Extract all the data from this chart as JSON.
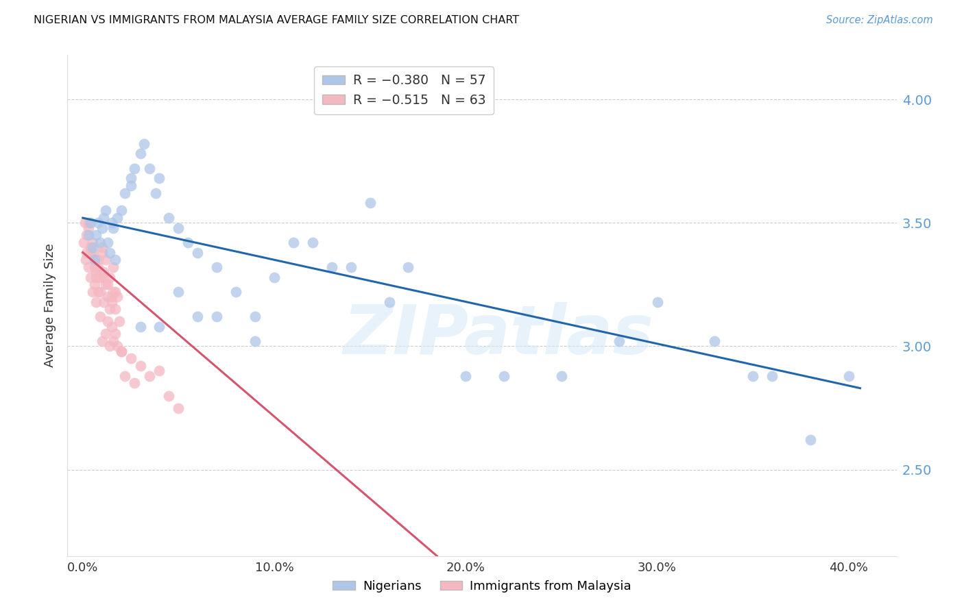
{
  "title": "NIGERIAN VS IMMIGRANTS FROM MALAYSIA AVERAGE FAMILY SIZE CORRELATION CHART",
  "source": "Source: ZipAtlas.com",
  "ylabel": "Average Family Size",
  "xlabel_ticks": [
    "0.0%",
    "10.0%",
    "20.0%",
    "30.0%",
    "40.0%"
  ],
  "xlabel_tick_vals": [
    0.0,
    0.1,
    0.2,
    0.3,
    0.4
  ],
  "ylabel_ticks": [
    2.5,
    3.0,
    3.5,
    4.0
  ],
  "xlim": [
    -0.008,
    0.425
  ],
  "ylim": [
    2.15,
    4.18
  ],
  "legend1_color": "#aec6e8",
  "legend2_color": "#f4b8c1",
  "nigerian_color": "#aec6e8",
  "malaysia_color": "#f4b8c1",
  "nigerian_line_color": "#2166ac",
  "malaysia_line_color": "#d6546e",
  "watermark": "ZIPatlas",
  "nigerian_R": -0.38,
  "nigerian_N": 57,
  "malaysia_R": -0.515,
  "malaysia_N": 63,
  "blue_line_x0": 0.0,
  "blue_line_y0": 3.52,
  "blue_line_x1": 0.406,
  "blue_line_y1": 2.83,
  "pink_line_x0": 0.0,
  "pink_line_y0": 3.38,
  "pink_line_x1": 0.185,
  "pink_line_y1": 2.15,
  "nigerian_x": [
    0.003,
    0.004,
    0.005,
    0.006,
    0.007,
    0.008,
    0.009,
    0.01,
    0.011,
    0.012,
    0.013,
    0.014,
    0.015,
    0.016,
    0.017,
    0.018,
    0.02,
    0.022,
    0.025,
    0.027,
    0.03,
    0.032,
    0.035,
    0.038,
    0.04,
    0.045,
    0.05,
    0.055,
    0.06,
    0.07,
    0.08,
    0.09,
    0.1,
    0.12,
    0.14,
    0.16,
    0.2,
    0.22,
    0.25,
    0.28,
    0.3,
    0.33,
    0.36,
    0.38,
    0.4,
    0.03,
    0.05,
    0.07,
    0.09,
    0.11,
    0.13,
    0.15,
    0.17,
    0.025,
    0.04,
    0.06,
    0.35
  ],
  "nigerian_y": [
    3.45,
    3.5,
    3.4,
    3.35,
    3.45,
    3.5,
    3.42,
    3.48,
    3.52,
    3.55,
    3.42,
    3.38,
    3.5,
    3.48,
    3.35,
    3.52,
    3.55,
    3.62,
    3.68,
    3.72,
    3.78,
    3.82,
    3.72,
    3.62,
    3.68,
    3.52,
    3.48,
    3.42,
    3.38,
    3.32,
    3.22,
    3.12,
    3.28,
    3.42,
    3.32,
    3.18,
    2.88,
    2.88,
    2.88,
    3.02,
    3.18,
    3.02,
    2.88,
    2.62,
    2.88,
    3.08,
    3.22,
    3.12,
    3.02,
    3.42,
    3.32,
    3.58,
    3.32,
    3.65,
    3.08,
    3.12,
    2.88
  ],
  "malaysia_x": [
    0.0005,
    0.001,
    0.0015,
    0.002,
    0.002,
    0.003,
    0.003,
    0.004,
    0.004,
    0.005,
    0.005,
    0.006,
    0.006,
    0.007,
    0.007,
    0.008,
    0.008,
    0.009,
    0.009,
    0.01,
    0.01,
    0.011,
    0.011,
    0.012,
    0.012,
    0.013,
    0.013,
    0.014,
    0.014,
    0.015,
    0.015,
    0.016,
    0.016,
    0.017,
    0.017,
    0.018,
    0.018,
    0.019,
    0.02,
    0.022,
    0.025,
    0.027,
    0.03,
    0.035,
    0.04,
    0.045,
    0.05,
    0.003,
    0.004,
    0.005,
    0.006,
    0.007,
    0.008,
    0.009,
    0.01,
    0.011,
    0.012,
    0.013,
    0.014,
    0.015,
    0.016,
    0.017,
    0.02
  ],
  "malaysia_y": [
    3.42,
    3.5,
    3.35,
    3.45,
    3.38,
    3.32,
    3.48,
    3.38,
    3.28,
    3.42,
    3.22,
    3.35,
    3.25,
    3.3,
    3.18,
    3.32,
    3.22,
    3.28,
    3.12,
    3.38,
    3.02,
    3.28,
    3.18,
    3.25,
    3.05,
    3.2,
    3.1,
    3.15,
    3.0,
    3.18,
    3.08,
    3.22,
    3.02,
    3.15,
    3.05,
    3.2,
    3.0,
    3.1,
    2.98,
    2.88,
    2.95,
    2.85,
    2.92,
    2.88,
    2.9,
    2.8,
    2.75,
    3.5,
    3.4,
    3.38,
    3.32,
    3.28,
    3.35,
    3.22,
    3.4,
    3.3,
    3.35,
    3.25,
    3.28,
    3.2,
    3.32,
    3.22,
    2.98
  ]
}
